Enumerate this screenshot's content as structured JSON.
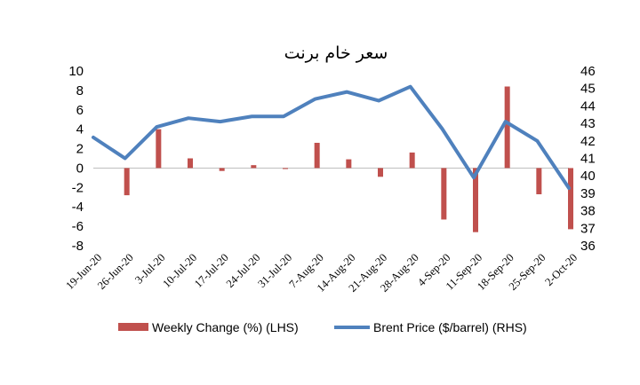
{
  "chart_data": {
    "type": "bar-line",
    "title": "سعر خام برنت",
    "categories": [
      "19-Jun-20",
      "26-Jun-20",
      "3-Jul-20",
      "10-Jul-20",
      "17-Jul-20",
      "24-Jul-20",
      "31-Jul-20",
      "7-Aug-20",
      "14-Aug-20",
      "21-Aug-20",
      "28-Aug-20",
      "4-Sep-20",
      "11-Sep-20",
      "18-Sep-20",
      "25-Sep-20",
      "2-Oct-20"
    ],
    "series": [
      {
        "name": "Weekly Change (%) (LHS)",
        "type": "bar",
        "axis": "left",
        "color": "#c0504d",
        "values": [
          0,
          -2.8,
          4.0,
          1.0,
          -0.3,
          0.3,
          -0.1,
          2.6,
          0.9,
          -0.9,
          1.6,
          -5.3,
          -6.6,
          8.4,
          -2.7,
          -6.3
        ]
      },
      {
        "name": "Brent Price ($/barrel) (RHS)",
        "type": "line",
        "axis": "right",
        "color": "#4f81bd",
        "values": [
          42.2,
          41.0,
          42.8,
          43.3,
          43.1,
          43.4,
          43.4,
          44.4,
          44.8,
          44.3,
          45.1,
          42.7,
          39.9,
          43.1,
          42.0,
          39.3
        ]
      }
    ],
    "y_left": {
      "min": -8,
      "max": 10,
      "ticks": [
        10,
        8,
        6,
        4,
        2,
        0,
        -2,
        -4,
        -6,
        -8
      ]
    },
    "y_right": {
      "min": 36,
      "max": 46,
      "ticks": [
        46,
        45,
        44,
        43,
        42,
        41,
        40,
        39,
        38,
        37,
        36
      ]
    },
    "legend_position": "bottom",
    "grid": false
  }
}
